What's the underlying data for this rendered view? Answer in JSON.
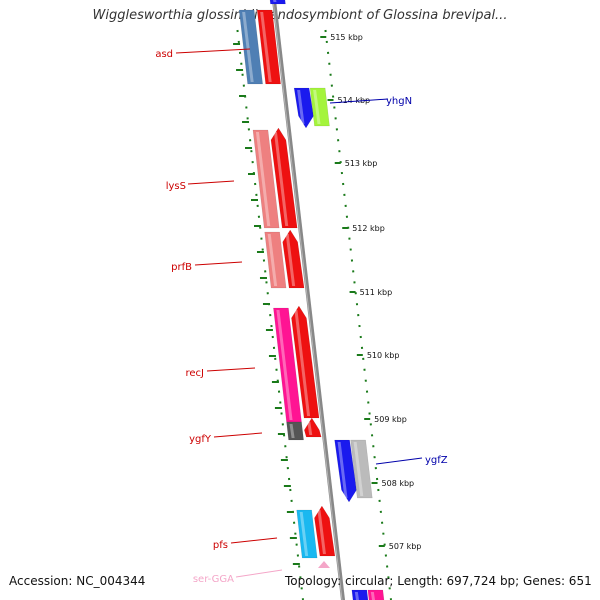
{
  "title": "Wigglesworthia glossinidia endosymbiont of Glossina brevipal...",
  "accession": "Accession: NC_004344",
  "topology": "Topology: circular; Length: 697,724 bp; Genes: 651",
  "colors": {
    "backbone": "#888888",
    "tick": "#1a7a1a",
    "gene_label_left": "#cc0000",
    "gene_label_right": "#0000aa",
    "trna_label": "#f4a6c8",
    "kbp_label": "#111111"
  },
  "kbp_markers": [
    "515 kbp",
    "514 kbp",
    "513 kbp",
    "512 kbp",
    "511 kbp",
    "510 kbp",
    "509 kbp",
    "508 kbp",
    "507 kbp"
  ],
  "genes": [
    {
      "name": "asd",
      "label_side": "left",
      "label_color": "gene_label_left"
    },
    {
      "name": "yhgN",
      "label_side": "right",
      "label_color": "gene_label_right"
    },
    {
      "name": "lysS",
      "label_side": "left",
      "label_color": "gene_label_left"
    },
    {
      "name": "prfB",
      "label_side": "left",
      "label_color": "gene_label_left"
    },
    {
      "name": "recJ",
      "label_side": "left",
      "label_color": "gene_label_left"
    },
    {
      "name": "ygfY",
      "label_side": "left",
      "label_color": "gene_label_left"
    },
    {
      "name": "ygfZ",
      "label_side": "right",
      "label_color": "gene_label_right"
    },
    {
      "name": "pfs",
      "label_side": "left",
      "label_color": "gene_label_left"
    },
    {
      "name": "ser-GGA",
      "label_side": "left",
      "label_color": "trna_label"
    }
  ]
}
